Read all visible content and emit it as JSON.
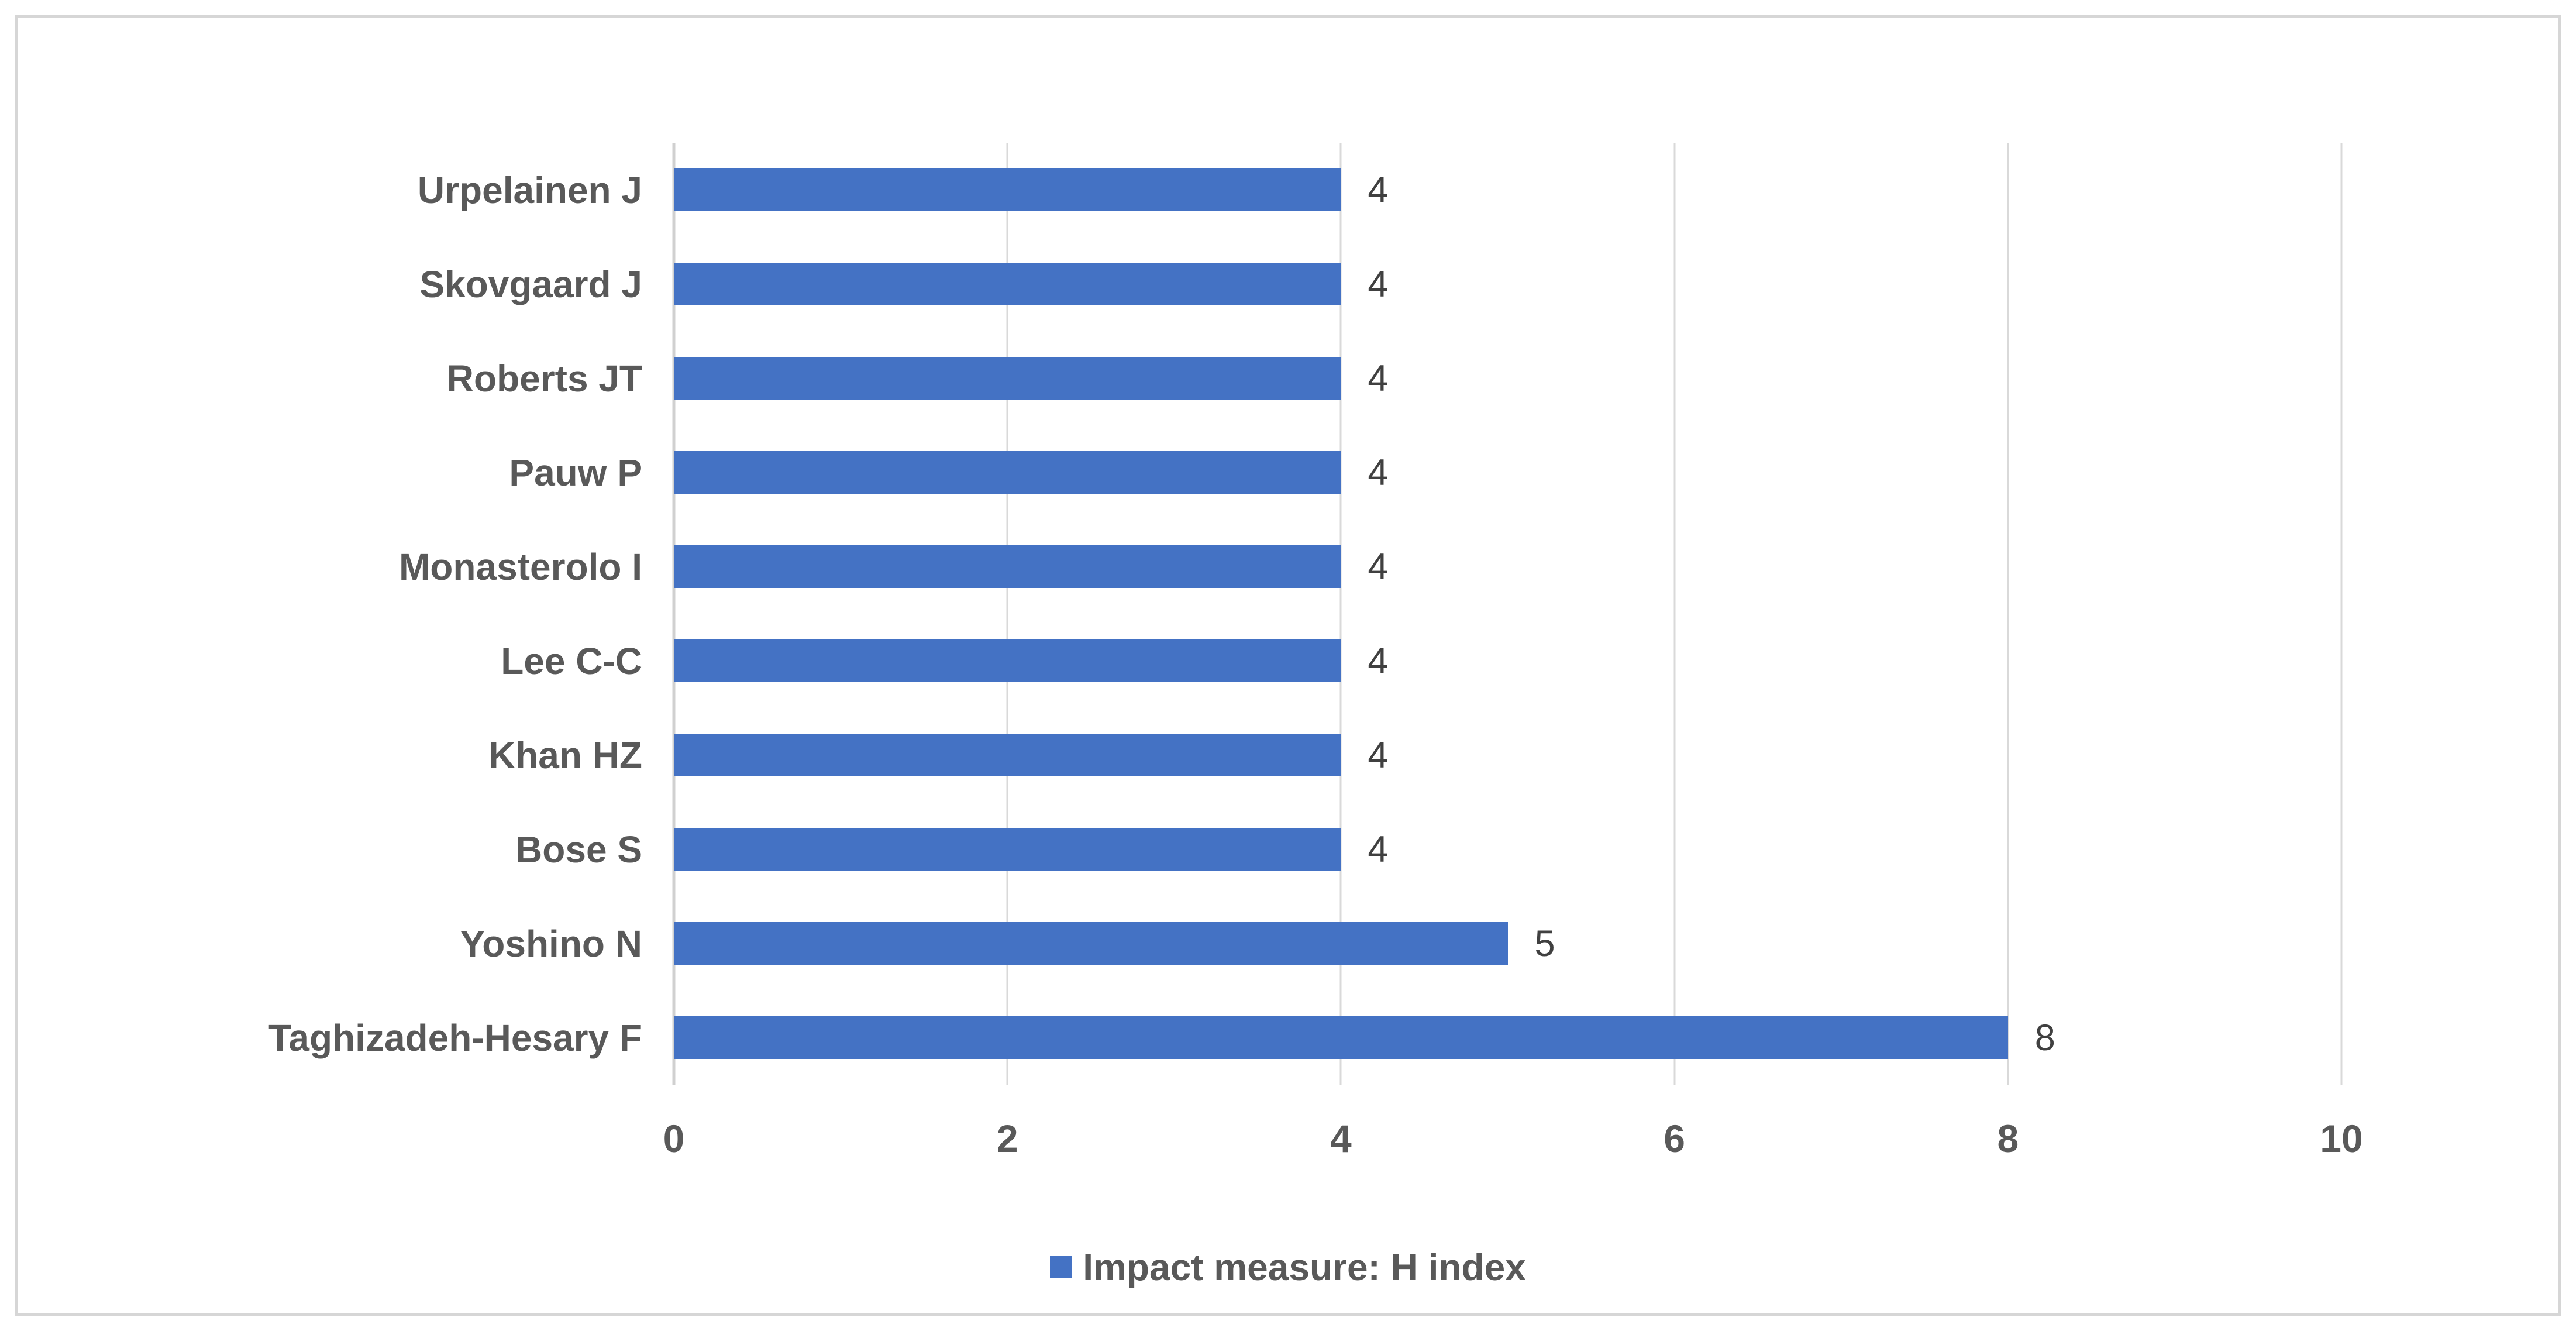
{
  "chart_data": {
    "type": "bar",
    "orientation": "horizontal",
    "categories": [
      "Urpelainen J",
      "Skovgaard J",
      "Roberts JT",
      "Pauw P",
      "Monasterolo I",
      "Lee C-C",
      "Khan HZ",
      "Bose S",
      "Yoshino N",
      "Taghizadeh-Hesary F"
    ],
    "values": [
      4,
      4,
      4,
      4,
      4,
      4,
      4,
      4,
      5,
      8
    ],
    "value_labels": [
      "4",
      "4",
      "4",
      "4",
      "4",
      "4",
      "4",
      "4",
      "5",
      "8"
    ],
    "xlim": [
      0,
      10
    ],
    "xticks": [
      0,
      2,
      4,
      6,
      8,
      10
    ],
    "grid": "vertical-on",
    "legend_position": "bottom-center",
    "legend": {
      "label": "Impact measure: H index"
    },
    "colors": {
      "bar": "#4472C4",
      "gridline": "#D9D9D9",
      "axis_line": "#D0D0D0",
      "category_text": "#595959",
      "tick_text": "#595959",
      "value_text": "#404040",
      "frame_border": "#D6D6D6",
      "background": "#FFFFFF"
    }
  }
}
